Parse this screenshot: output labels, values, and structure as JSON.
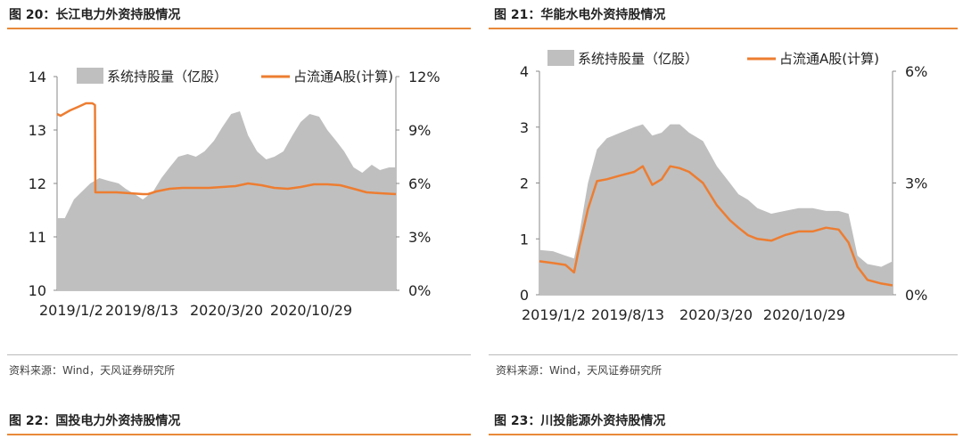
{
  "figures": [
    {
      "title": "图 20：长江电力外资持股情况",
      "source": "资料来源：Wind，天风证券研究所"
    },
    {
      "title": "图 21：华能水电外资持股情况",
      "source": "资料来源：Wind，天风证券研究所"
    },
    {
      "title": "图 22：国投电力外资持股情况"
    },
    {
      "title": "图 23：川投能源外资持股情况"
    }
  ],
  "colors": {
    "area": "#bfbfbf",
    "line": "#ed7d31",
    "rule": "#e8893a"
  },
  "chart_data": [
    {
      "type": "area",
      "title": "图 20：长江电力外资持股情况",
      "x_tick_labels": [
        "2019/1/2",
        "2019/8/13",
        "2020/3/20",
        "2020/10/29"
      ],
      "x_range": [
        "2019-01-02",
        "2021-02-26"
      ],
      "y_left": {
        "min": 10,
        "max": 14,
        "ticks": [
          "10",
          "11",
          "12",
          "13",
          "14"
        ]
      },
      "y_right": {
        "min": 0,
        "max": 12,
        "ticks": [
          "0%",
          "3%",
          "6%",
          "9%",
          "12%"
        ]
      },
      "legend_position": "top",
      "series": [
        {
          "name": "系统持股量（亿股）",
          "kind": "area",
          "axis": "left",
          "x": [
            "2019-01-02",
            "2019-01-20",
            "2019-02-10",
            "2019-03-01",
            "2019-03-20",
            "2019-04-10",
            "2019-05-01",
            "2019-05-25",
            "2019-06-10",
            "2019-07-01",
            "2019-07-20",
            "2019-08-13",
            "2019-09-01",
            "2019-09-20",
            "2019-10-10",
            "2019-11-01",
            "2019-11-20",
            "2019-12-10",
            "2020-01-01",
            "2020-01-20",
            "2020-02-10",
            "2020-03-01",
            "2020-03-20",
            "2020-04-10",
            "2020-05-01",
            "2020-05-20",
            "2020-06-10",
            "2020-07-01",
            "2020-07-20",
            "2020-08-10",
            "2020-09-01",
            "2020-09-20",
            "2020-10-10",
            "2020-10-29",
            "2020-11-20",
            "2020-12-10",
            "2021-01-01",
            "2021-01-20",
            "2021-02-10",
            "2021-02-26"
          ],
          "values": [
            11.35,
            11.35,
            11.7,
            11.85,
            12.0,
            12.1,
            12.05,
            12.0,
            11.9,
            11.8,
            11.7,
            11.85,
            12.1,
            12.3,
            12.5,
            12.55,
            12.5,
            12.6,
            12.8,
            13.05,
            13.3,
            13.35,
            12.9,
            12.6,
            12.45,
            12.5,
            12.6,
            12.9,
            13.15,
            13.3,
            13.25,
            13.0,
            12.8,
            12.6,
            12.3,
            12.2,
            12.35,
            12.25,
            12.3,
            12.3
          ]
        },
        {
          "name": "占流通A股(计算)",
          "kind": "line",
          "axis": "right",
          "x": [
            "2019-01-02",
            "2019-01-10",
            "2019-02-01",
            "2019-02-20",
            "2019-03-10",
            "2019-03-25",
            "2019-03-31",
            "2019-04-01",
            "2019-04-20",
            "2019-05-20",
            "2019-06-20",
            "2019-07-20",
            "2019-08-01",
            "2019-08-20",
            "2019-09-20",
            "2019-10-20",
            "2019-11-20",
            "2019-12-20",
            "2020-01-20",
            "2020-02-20",
            "2020-03-20",
            "2020-04-20",
            "2020-05-20",
            "2020-06-20",
            "2020-07-20",
            "2020-08-20",
            "2020-09-20",
            "2020-10-20",
            "2020-11-20",
            "2020-12-20",
            "2021-01-20",
            "2021-02-26"
          ],
          "values": [
            9.9,
            9.8,
            10.1,
            10.3,
            10.5,
            10.5,
            10.4,
            5.5,
            5.5,
            5.5,
            5.45,
            5.4,
            5.4,
            5.55,
            5.7,
            5.75,
            5.75,
            5.75,
            5.8,
            5.85,
            6.0,
            5.9,
            5.75,
            5.7,
            5.8,
            5.95,
            5.95,
            5.9,
            5.7,
            5.5,
            5.45,
            5.4
          ]
        }
      ]
    },
    {
      "type": "area",
      "title": "图 21：华能水电外资持股情况",
      "x_tick_labels": [
        "2019/1/2",
        "2019/8/13",
        "2020/3/20",
        "2020/10/29"
      ],
      "x_range": [
        "2019-01-02",
        "2021-02-26"
      ],
      "y_left": {
        "min": 0,
        "max": 4,
        "ticks": [
          "0",
          "1",
          "2",
          "3",
          "4"
        ]
      },
      "y_right": {
        "min": 0,
        "max": 6,
        "ticks": [
          "0%",
          "3%",
          "6%"
        ]
      },
      "legend_position": "top",
      "series": [
        {
          "name": "系统持股量（亿股）",
          "kind": "area",
          "axis": "left",
          "x": [
            "2019-01-02",
            "2019-02-01",
            "2019-03-01",
            "2019-03-20",
            "2019-04-01",
            "2019-04-20",
            "2019-05-10",
            "2019-06-01",
            "2019-07-01",
            "2019-08-01",
            "2019-08-20",
            "2019-09-10",
            "2019-10-01",
            "2019-10-20",
            "2019-11-10",
            "2019-12-01",
            "2020-01-01",
            "2020-02-01",
            "2020-03-01",
            "2020-03-20",
            "2020-04-10",
            "2020-05-01",
            "2020-06-01",
            "2020-07-01",
            "2020-08-01",
            "2020-09-01",
            "2020-10-01",
            "2020-10-29",
            "2020-11-20",
            "2020-12-10",
            "2021-01-01",
            "2021-02-01",
            "2021-02-26"
          ],
          "values": [
            0.8,
            0.78,
            0.7,
            0.65,
            1.1,
            2.0,
            2.6,
            2.8,
            2.9,
            3.0,
            3.05,
            2.85,
            2.9,
            3.05,
            3.05,
            2.9,
            2.75,
            2.3,
            2.0,
            1.8,
            1.7,
            1.55,
            1.45,
            1.5,
            1.55,
            1.55,
            1.5,
            1.5,
            1.45,
            0.7,
            0.55,
            0.5,
            0.6
          ]
        },
        {
          "name": "占流通A股(计算)",
          "kind": "line",
          "axis": "right",
          "x": [
            "2019-01-02",
            "2019-02-01",
            "2019-03-01",
            "2019-03-20",
            "2019-04-01",
            "2019-04-20",
            "2019-05-10",
            "2019-06-01",
            "2019-07-01",
            "2019-08-01",
            "2019-08-20",
            "2019-09-10",
            "2019-10-01",
            "2019-10-20",
            "2019-11-10",
            "2019-12-01",
            "2020-01-01",
            "2020-02-01",
            "2020-03-01",
            "2020-03-20",
            "2020-04-10",
            "2020-05-01",
            "2020-06-01",
            "2020-07-01",
            "2020-08-01",
            "2020-09-01",
            "2020-10-01",
            "2020-10-29",
            "2020-11-20",
            "2020-12-10",
            "2021-01-01",
            "2021-02-01",
            "2021-02-26"
          ],
          "values": [
            0.9,
            0.85,
            0.8,
            0.6,
            1.3,
            2.3,
            3.05,
            3.1,
            3.2,
            3.3,
            3.45,
            2.95,
            3.1,
            3.45,
            3.4,
            3.3,
            3.0,
            2.4,
            2.0,
            1.8,
            1.6,
            1.5,
            1.45,
            1.6,
            1.7,
            1.7,
            1.8,
            1.75,
            1.4,
            0.75,
            0.4,
            0.3,
            0.25
          ]
        }
      ]
    }
  ]
}
